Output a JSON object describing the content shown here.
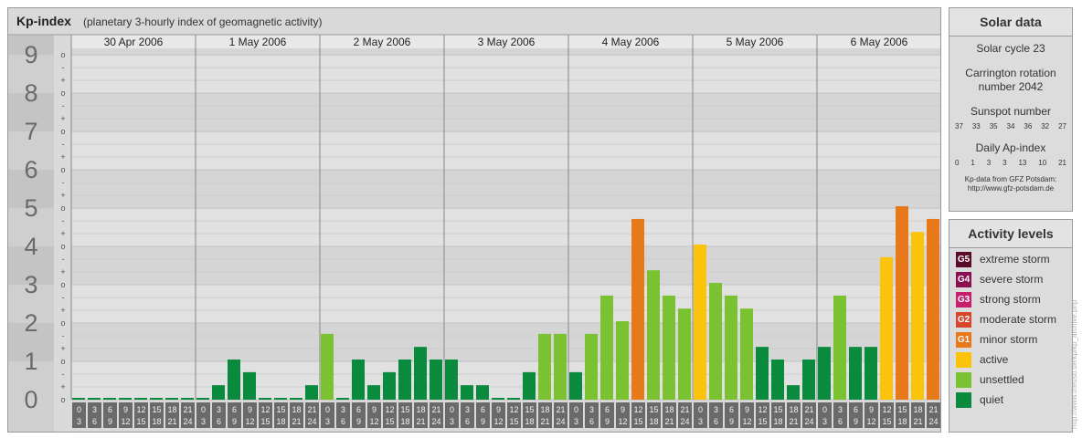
{
  "chart_data": {
    "type": "bar",
    "title": "Kp-index",
    "subtitle": "(planetary 3-hourly index of geomagnetic activity)",
    "ylim": [
      0,
      9
    ],
    "y_ticks": [
      "0",
      "1",
      "2",
      "3",
      "4",
      "5",
      "6",
      "7",
      "8",
      "9"
    ],
    "sub_ticks": [
      "o",
      "-",
      "+"
    ],
    "days": [
      "30 Apr 2006",
      "1 May 2006",
      "2 May 2006",
      "3 May 2006",
      "4 May 2006",
      "5 May 2006",
      "6 May 2006"
    ],
    "interval_top": [
      "0",
      "3",
      "6",
      "9",
      "12",
      "15",
      "18",
      "21"
    ],
    "interval_bottom": [
      "3",
      "6",
      "9",
      "12",
      "15",
      "18",
      "21",
      "24"
    ],
    "values": [
      [
        0,
        0,
        0,
        0,
        0,
        0,
        0,
        0
      ],
      [
        0,
        0.33,
        1,
        0.67,
        0,
        0,
        0,
        0.33
      ],
      [
        1.67,
        0,
        1,
        0.33,
        0.67,
        1,
        1.33,
        1
      ],
      [
        1,
        0.33,
        0.33,
        0,
        0,
        0.67,
        1.67,
        1.67
      ],
      [
        0.67,
        1.67,
        2.67,
        2,
        4.67,
        3.33,
        2.67,
        2.33
      ],
      [
        4,
        3,
        2.67,
        2.33,
        1.33,
        1,
        0.33,
        1
      ],
      [
        1.33,
        2.67,
        1.33,
        1.33,
        3.67,
        5,
        4.33,
        4.67
      ]
    ],
    "colors": {
      "quiet": "#0a8a3c",
      "unsettled": "#7ac231",
      "active": "#fbc40b",
      "minor_storm": "#e8791a"
    },
    "grid": true
  },
  "solar": {
    "title": "Solar data",
    "cycle": "Solar cycle 23",
    "carrington_1": "Carrington rotation",
    "carrington_2": "number 2042",
    "sunspot_label": "Sunspot number",
    "sunspot_values": [
      "37",
      "33",
      "35",
      "34",
      "36",
      "32",
      "27"
    ],
    "ap_label": "Daily Ap-index",
    "ap_values": [
      "0",
      "1",
      "3",
      "3",
      "13",
      "10",
      "21"
    ],
    "source_1": "Kp-data from GFZ Potsdam:",
    "source_2": "http://www.gfz-potsdam.de"
  },
  "activity": {
    "title": "Activity levels",
    "levels": [
      {
        "badge": "G5",
        "label": "extreme storm",
        "color": "#5a0a2a"
      },
      {
        "badge": "G4",
        "label": "severe storm",
        "color": "#8a1050"
      },
      {
        "badge": "G3",
        "label": "strong storm",
        "color": "#c81e6e"
      },
      {
        "badge": "G2",
        "label": "moderate storm",
        "color": "#d8472a"
      },
      {
        "badge": "G1",
        "label": "minor storm",
        "color": "#e8791a"
      },
      {
        "badge": "",
        "label": "active",
        "color": "#fbc40b"
      },
      {
        "badge": "",
        "label": "unsettled",
        "color": "#7ac231"
      },
      {
        "badge": "",
        "label": "quiet",
        "color": "#0a8a3c"
      }
    ]
  },
  "credit": "http://www.theusb.de/kp/kp_archive.php"
}
